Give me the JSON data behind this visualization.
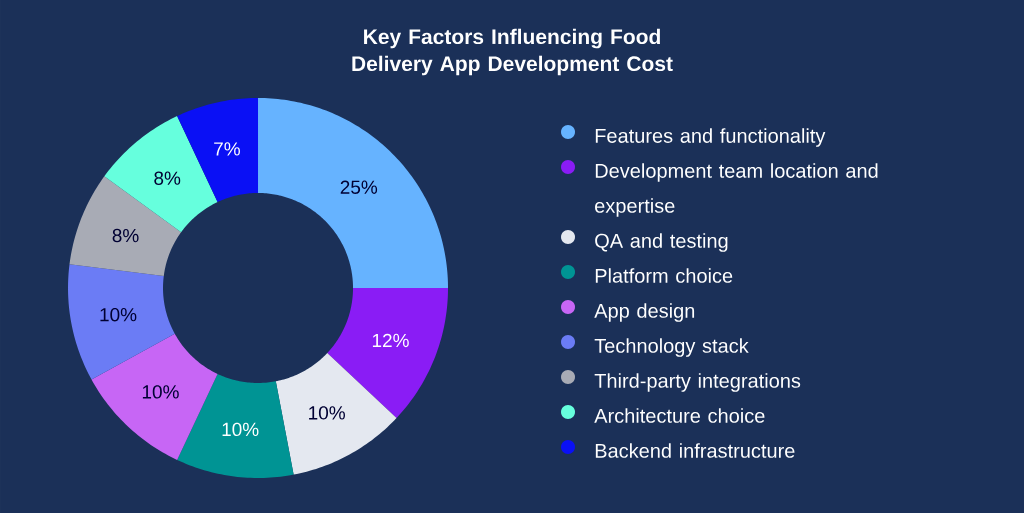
{
  "chart_data": {
    "type": "donut",
    "title": "Key Factors Influencing Food Delivery App Development Cost",
    "categories": [
      "Features and functionality",
      "Development team location and expertise",
      "QA and testing",
      "Platform choice",
      "App design",
      "Technology stack",
      "Third-party integrations",
      "Architecture choice",
      "Backend infrastructure"
    ],
    "values": [
      25,
      12,
      10,
      10,
      10,
      10,
      8,
      8,
      7
    ],
    "value_labels": [
      "25%",
      "12%",
      "10%",
      "10%",
      "10%",
      "10%",
      "8%",
      "8%",
      "7%"
    ],
    "colors": [
      "#66b3ff",
      "#8a1cf5",
      "#e4e8f0",
      "#009494",
      "#c766f5",
      "#6b7cf5",
      "#a8abb5",
      "#66ffdd",
      "#0a10f5"
    ],
    "legend": "right"
  }
}
